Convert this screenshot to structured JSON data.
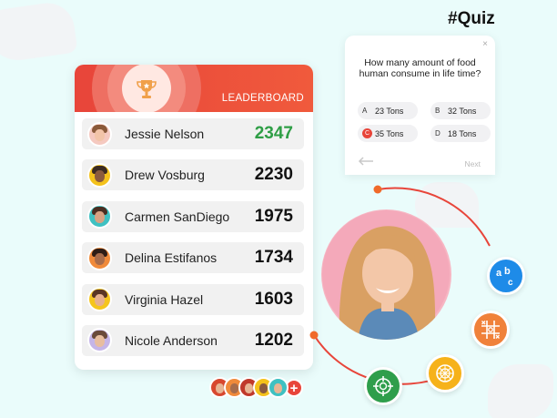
{
  "tag": "#Quiz",
  "quiz": {
    "close": "×",
    "question": "How many amount of food human consume in life time?",
    "options": [
      {
        "letter": "A",
        "text": "23 Tons",
        "selected": false
      },
      {
        "letter": "B",
        "text": "32 Tons",
        "selected": false
      },
      {
        "letter": "C",
        "text": "35 Tons",
        "selected": true
      },
      {
        "letter": "D",
        "text": "18 Tons",
        "selected": false
      }
    ],
    "next_label": "Next"
  },
  "leaderboard": {
    "title": "LEADERBOARD",
    "players": [
      {
        "name": "Jessie Nelson",
        "score": "2347"
      },
      {
        "name": "Drew Vosburg",
        "score": "2230"
      },
      {
        "name": "Carmen SanDiego",
        "score": "1975"
      },
      {
        "name": "Delina Estifanos",
        "score": "1734"
      },
      {
        "name": "Virginia Hazel",
        "score": "1603"
      },
      {
        "name": "Nicole Anderson",
        "score": "1202"
      }
    ]
  },
  "strip": {
    "plus": "+"
  },
  "colors": {
    "accent": "#e8453a",
    "top_score": "#2e9e45",
    "background": "#eafcfb"
  }
}
